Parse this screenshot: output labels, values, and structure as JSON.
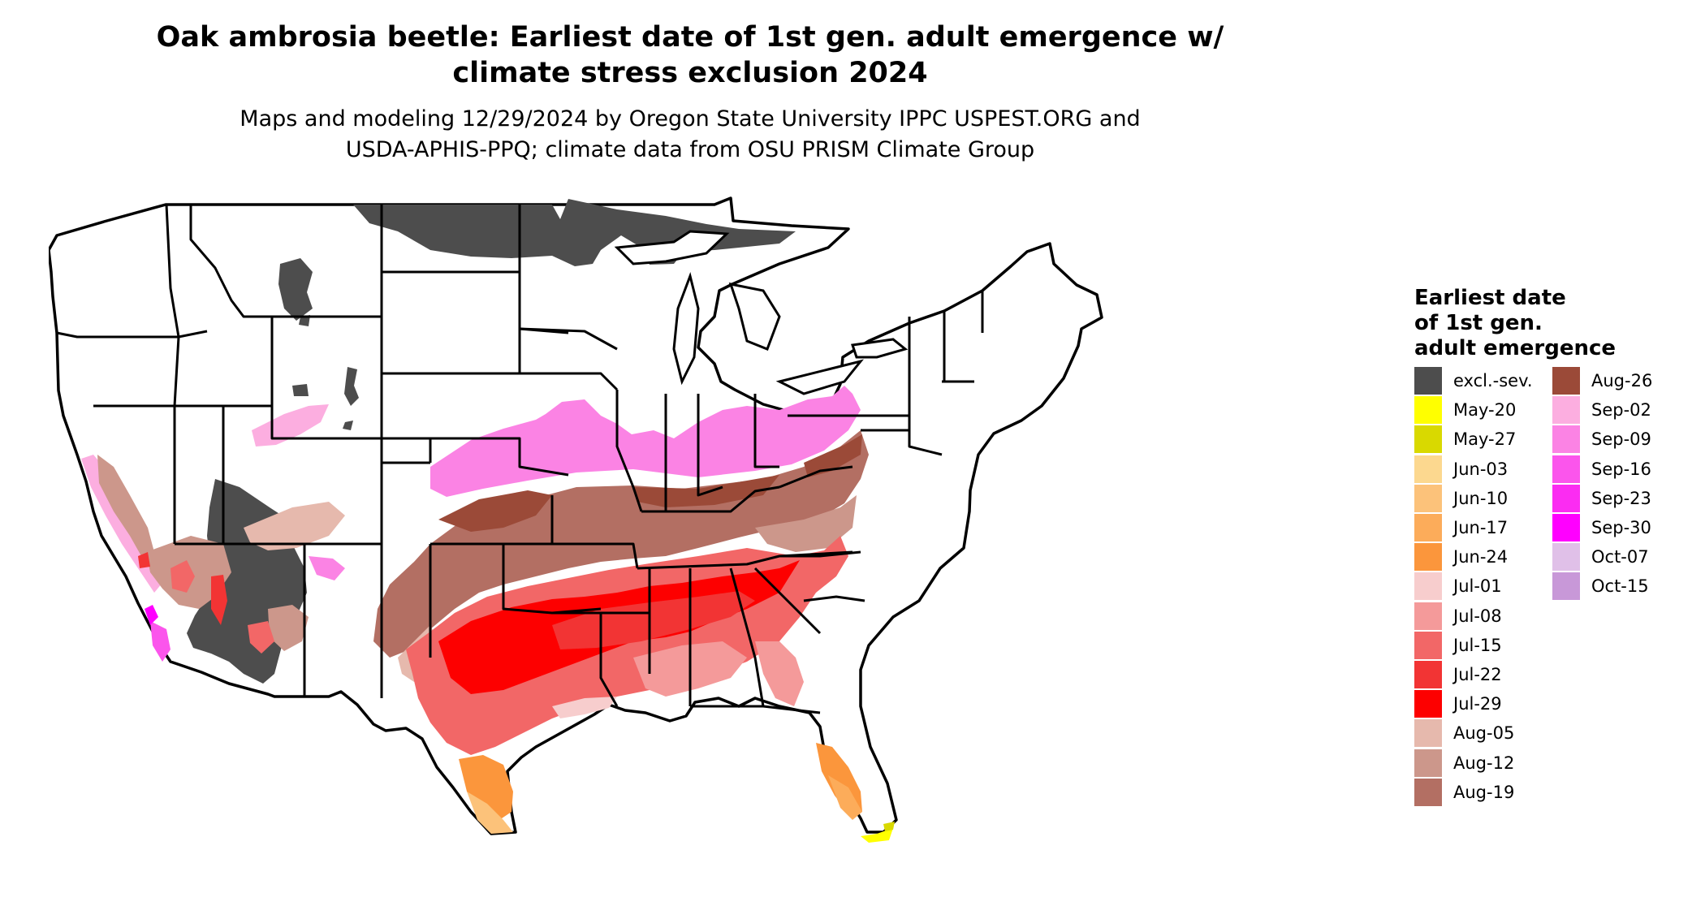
{
  "title_line1": "Oak ambrosia beetle: Earliest date of 1st gen. adult emergence w/",
  "title_line2": "climate stress exclusion 2024",
  "subtitle_line1": "Maps and modeling 12/29/2024 by Oregon State University IPPC USPEST.ORG and",
  "subtitle_line2": "USDA-APHIS-PPQ; climate data from OSU PRISM Climate Group",
  "legend": {
    "title_line1": "Earliest date",
    "title_line2": "of 1st gen.",
    "title_line3": "adult emergence",
    "col1": [
      {
        "label": "excl.-sev.",
        "color": "#4d4d4d"
      },
      {
        "label": "May-20",
        "color": "#ffff00"
      },
      {
        "label": "May-27",
        "color": "#d9d900"
      },
      {
        "label": "Jun-03",
        "color": "#fcd88f"
      },
      {
        "label": "Jun-10",
        "color": "#fcc27a"
      },
      {
        "label": "Jun-17",
        "color": "#fcac5a"
      },
      {
        "label": "Jun-24",
        "color": "#fb963c"
      },
      {
        "label": "Jul-01",
        "color": "#f7cdcd"
      },
      {
        "label": "Jul-08",
        "color": "#f49a9a"
      },
      {
        "label": "Jul-15",
        "color": "#f26767"
      },
      {
        "label": "Jul-22",
        "color": "#f23434"
      },
      {
        "label": "Jul-29",
        "color": "#fd0000"
      },
      {
        "label": "Aug-05",
        "color": "#e6b9ad"
      },
      {
        "label": "Aug-12",
        "color": "#cc978b"
      },
      {
        "label": "Aug-19",
        "color": "#b36f63"
      }
    ],
    "col2": [
      {
        "label": "Aug-26",
        "color": "#9b4a38"
      },
      {
        "label": "Sep-02",
        "color": "#fcaee0"
      },
      {
        "label": "Sep-09",
        "color": "#fb83e4"
      },
      {
        "label": "Sep-16",
        "color": "#fb55ec"
      },
      {
        "label": "Sep-23",
        "color": "#fb2cf2"
      },
      {
        "label": "Sep-30",
        "color": "#ff00ff"
      },
      {
        "label": "Oct-07",
        "color": "#e0c0e8"
      },
      {
        "label": "Oct-15",
        "color": "#c898d8"
      }
    ]
  }
}
